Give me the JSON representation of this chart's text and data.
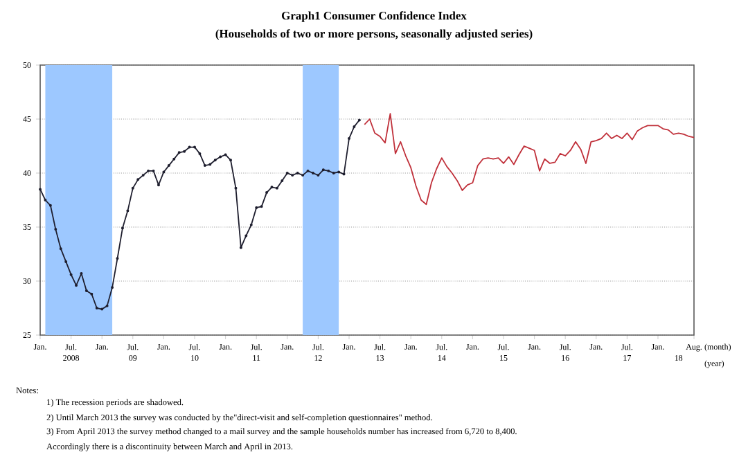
{
  "chart_data": {
    "type": "line",
    "title": "Graph1    Consumer Confidence Index",
    "subtitle": "(Households of two or more persons, seasonally adjusted series)",
    "xlabel": "(month)",
    "x2label": "(year)",
    "x": [
      "2008-01",
      "2008-02",
      "2008-03",
      "2008-04",
      "2008-05",
      "2008-06",
      "2008-07",
      "2008-08",
      "2008-09",
      "2008-10",
      "2008-11",
      "2008-12",
      "2009-01",
      "2009-02",
      "2009-03",
      "2009-04",
      "2009-05",
      "2009-06",
      "2009-07",
      "2009-08",
      "2009-09",
      "2009-10",
      "2009-11",
      "2009-12",
      "2010-01",
      "2010-02",
      "2010-03",
      "2010-04",
      "2010-05",
      "2010-06",
      "2010-07",
      "2010-08",
      "2010-09",
      "2010-10",
      "2010-11",
      "2010-12",
      "2011-01",
      "2011-02",
      "2011-03",
      "2011-04",
      "2011-05",
      "2011-06",
      "2011-07",
      "2011-08",
      "2011-09",
      "2011-10",
      "2011-11",
      "2011-12",
      "2012-01",
      "2012-02",
      "2012-03",
      "2012-04",
      "2012-05",
      "2012-06",
      "2012-07",
      "2012-08",
      "2012-09",
      "2012-10",
      "2012-11",
      "2012-12",
      "2013-01",
      "2013-02",
      "2013-03",
      "2013-04",
      "2013-05",
      "2013-06",
      "2013-07",
      "2013-08",
      "2013-09",
      "2013-10",
      "2013-11",
      "2013-12",
      "2014-01",
      "2014-02",
      "2014-03",
      "2014-04",
      "2014-05",
      "2014-06",
      "2014-07",
      "2014-08",
      "2014-09",
      "2014-10",
      "2014-11",
      "2014-12",
      "2015-01",
      "2015-02",
      "2015-03",
      "2015-04",
      "2015-05",
      "2015-06",
      "2015-07",
      "2015-08",
      "2015-09",
      "2015-10",
      "2015-11",
      "2015-12",
      "2016-01",
      "2016-02",
      "2016-03",
      "2016-04",
      "2016-05",
      "2016-06",
      "2016-07",
      "2016-08",
      "2016-09",
      "2016-10",
      "2016-11",
      "2016-12",
      "2017-01",
      "2017-02",
      "2017-03",
      "2017-04",
      "2017-05",
      "2017-06",
      "2017-07",
      "2017-08",
      "2017-09",
      "2017-10",
      "2017-11",
      "2017-12",
      "2018-01",
      "2018-02",
      "2018-03",
      "2018-04",
      "2018-05",
      "2018-06",
      "2018-07",
      "2018-08"
    ],
    "series": [
      {
        "color": "#1e1e2e",
        "marker": "circle",
        "values": [
          38.5,
          37.5,
          37.0,
          34.8,
          33.0,
          31.8,
          30.6,
          29.6,
          30.7,
          29.1,
          28.8,
          27.5,
          27.4,
          27.7,
          29.4,
          32.1,
          34.9,
          36.5,
          38.6,
          39.4,
          39.8,
          40.2,
          40.2,
          38.9,
          40.1,
          40.7,
          41.3,
          41.9,
          42.0,
          42.4,
          42.4,
          41.8,
          40.7,
          40.8,
          41.2,
          41.5,
          41.7,
          41.2,
          38.6,
          33.1,
          34.2,
          35.2,
          36.8,
          36.9,
          38.2,
          38.7,
          38.6,
          39.3,
          40.0,
          39.8,
          40.0,
          39.8,
          40.2,
          40.0,
          39.8,
          40.3,
          40.2,
          40.0,
          40.1,
          39.9,
          43.2,
          44.3,
          44.9,
          null,
          null,
          null,
          null,
          null,
          null,
          null,
          null,
          null,
          null,
          null,
          null,
          null,
          null,
          null,
          null,
          null,
          null,
          null,
          null,
          null,
          null,
          null,
          null,
          null,
          null,
          null,
          null,
          null,
          null,
          null,
          null,
          null,
          null,
          null,
          null,
          null,
          null,
          null,
          null,
          null,
          null,
          null,
          null,
          null,
          null,
          null,
          null,
          null,
          null,
          null,
          null,
          null,
          null,
          null,
          null,
          null,
          null,
          null,
          null,
          null,
          null,
          null,
          null,
          null
        ]
      },
      {
        "color": "#c0303a",
        "marker": "none",
        "values": [
          null,
          null,
          null,
          null,
          null,
          null,
          null,
          null,
          null,
          null,
          null,
          null,
          null,
          null,
          null,
          null,
          null,
          null,
          null,
          null,
          null,
          null,
          null,
          null,
          null,
          null,
          null,
          null,
          null,
          null,
          null,
          null,
          null,
          null,
          null,
          null,
          null,
          null,
          null,
          null,
          null,
          null,
          null,
          null,
          null,
          null,
          null,
          null,
          null,
          null,
          null,
          null,
          null,
          null,
          null,
          null,
          null,
          null,
          null,
          null,
          null,
          null,
          null,
          44.5,
          45.0,
          43.7,
          43.4,
          42.8,
          45.5,
          41.8,
          42.9,
          41.6,
          40.5,
          38.8,
          37.5,
          37.1,
          39.1,
          40.4,
          41.4,
          40.6,
          40.0,
          39.3,
          38.4,
          38.9,
          39.1,
          40.7,
          41.3,
          41.4,
          41.3,
          41.4,
          40.9,
          41.5,
          40.8,
          41.7,
          42.5,
          42.3,
          42.1,
          40.2,
          41.3,
          40.9,
          41.0,
          41.8,
          41.6,
          42.1,
          42.9,
          42.2,
          40.9,
          42.9,
          43.0,
          43.2,
          43.7,
          43.2,
          43.5,
          43.2,
          43.7,
          43.1,
          43.9,
          44.2,
          44.4,
          44.4,
          44.4,
          44.1,
          44.0,
          43.6,
          43.7,
          43.6,
          43.4,
          43.3
        ]
      }
    ],
    "xlim": [
      "2008-01",
      "2018-08"
    ],
    "xticks": [
      {
        "value": "2008-01",
        "label": "Jan."
      },
      {
        "value": "2008-07",
        "label": "Jul."
      },
      {
        "value": "2009-01",
        "label": "Jan."
      },
      {
        "value": "2009-07",
        "label": "Jul."
      },
      {
        "value": "2010-01",
        "label": "Jan."
      },
      {
        "value": "2010-07",
        "label": "Jul."
      },
      {
        "value": "2011-01",
        "label": "Jan."
      },
      {
        "value": "2011-07",
        "label": "Jul."
      },
      {
        "value": "2012-01",
        "label": "Jan."
      },
      {
        "value": "2012-07",
        "label": "Jul."
      },
      {
        "value": "2013-01",
        "label": "Jan."
      },
      {
        "value": "2013-07",
        "label": "Jul."
      },
      {
        "value": "2014-01",
        "label": "Jan."
      },
      {
        "value": "2014-07",
        "label": "Jul."
      },
      {
        "value": "2015-01",
        "label": "Jan."
      },
      {
        "value": "2015-07",
        "label": "Jul."
      },
      {
        "value": "2016-01",
        "label": "Jan."
      },
      {
        "value": "2016-07",
        "label": "Jul."
      },
      {
        "value": "2017-01",
        "label": "Jan."
      },
      {
        "value": "2017-07",
        "label": "Jul."
      },
      {
        "value": "2018-01",
        "label": "Jan."
      },
      {
        "value": "2018-08",
        "label": "Aug."
      }
    ],
    "x2lim": [
      "2008-01",
      "2018-08"
    ],
    "x2ticks": [
      {
        "value": "2008-07",
        "label": "2008"
      },
      {
        "value": "2009-07",
        "label": "09"
      },
      {
        "value": "2010-07",
        "label": "10"
      },
      {
        "value": "2011-07",
        "label": "11"
      },
      {
        "value": "2012-07",
        "label": "12"
      },
      {
        "value": "2013-07",
        "label": "13"
      },
      {
        "value": "2014-07",
        "label": "14"
      },
      {
        "value": "2015-07",
        "label": "15"
      },
      {
        "value": "2016-07",
        "label": "16"
      },
      {
        "value": "2017-07",
        "label": "17"
      },
      {
        "value": "2018-05",
        "label": "18"
      }
    ],
    "ylim": [
      25,
      50
    ],
    "yticks": [
      25,
      30,
      35,
      40,
      45,
      50
    ],
    "grid": "y",
    "line_style": "solid",
    "bands": [
      {
        "axis": "x",
        "from": "2008-02",
        "to": "2009-03",
        "color": "#9dc8ff"
      },
      {
        "axis": "x",
        "from": "2012-04",
        "to": "2012-11",
        "color": "#9dc8ff"
      }
    ],
    "annotations": [
      "Notes:",
      "1) The recession periods are shadowed.",
      "2) Until March 2013 the survey was conducted by the\"direct-visit and self-completion questionnaires\" method.",
      "3) From April 2013 the survey method changed to a mail survey and the sample households number has increased from 6,720 to 8,400.",
      "Accordingly there is a discontinuity between March and April in 2013."
    ]
  }
}
